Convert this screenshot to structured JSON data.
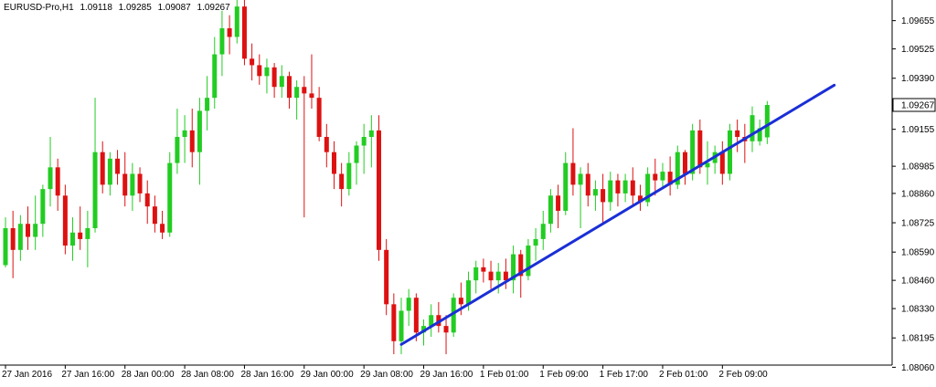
{
  "header": {
    "symbol": "EURUSD-Pro,H1",
    "open": "1.09118",
    "high": "1.09285",
    "low": "1.09087",
    "close": "1.09267"
  },
  "colors": {
    "bull": "#22cc22",
    "bear": "#dd1111",
    "wick": "#555555",
    "trendline": "#1a2fd6",
    "frame": "#000000",
    "price_box": "#000000"
  },
  "chart_data": {
    "type": "candlestick",
    "ylim": [
      1.0807,
      1.0975
    ],
    "y_ticks": [
      "1.09655",
      "1.09525",
      "1.09390",
      "1.09155",
      "1.08985",
      "1.08860",
      "1.08725",
      "1.08590",
      "1.08460",
      "1.08330",
      "1.08195",
      "1.08060"
    ],
    "current_price": "1.09267",
    "x_labels": [
      "27 Jan 2016",
      "27 Jan 16:00",
      "28 Jan 00:00",
      "28 Jan 08:00",
      "28 Jan 16:00",
      "29 Jan 00:00",
      "29 Jan 08:00",
      "29 Jan 16:00",
      "1 Feb 01:00",
      "1 Feb 09:00",
      "1 Feb 17:00",
      "2 Feb 01:00",
      "2 Feb 09:00"
    ],
    "candles": [
      {
        "o": 1.0853,
        "h": 1.0875,
        "l": 1.0852,
        "c": 1.087
      },
      {
        "o": 1.087,
        "h": 1.0878,
        "l": 1.0847,
        "c": 1.086
      },
      {
        "o": 1.086,
        "h": 1.0876,
        "l": 1.0855,
        "c": 1.0872
      },
      {
        "o": 1.0872,
        "h": 1.088,
        "l": 1.086,
        "c": 1.0866
      },
      {
        "o": 1.0866,
        "h": 1.0885,
        "l": 1.086,
        "c": 1.0872
      },
      {
        "o": 1.0872,
        "h": 1.089,
        "l": 1.0866,
        "c": 1.0888
      },
      {
        "o": 1.0888,
        "h": 1.0912,
        "l": 1.088,
        "c": 1.0898
      },
      {
        "o": 1.0898,
        "h": 1.0902,
        "l": 1.0878,
        "c": 1.0885
      },
      {
        "o": 1.0885,
        "h": 1.089,
        "l": 1.0858,
        "c": 1.0862
      },
      {
        "o": 1.0862,
        "h": 1.0875,
        "l": 1.0855,
        "c": 1.0868
      },
      {
        "o": 1.0868,
        "h": 1.088,
        "l": 1.086,
        "c": 1.0865
      },
      {
        "o": 1.0865,
        "h": 1.0878,
        "l": 1.0852,
        "c": 1.087
      },
      {
        "o": 1.087,
        "h": 1.093,
        "l": 1.0868,
        "c": 1.0905
      },
      {
        "o": 1.0905,
        "h": 1.091,
        "l": 1.0886,
        "c": 1.089
      },
      {
        "o": 1.089,
        "h": 1.0905,
        "l": 1.0885,
        "c": 1.0902
      },
      {
        "o": 1.0902,
        "h": 1.0906,
        "l": 1.089,
        "c": 1.0895
      },
      {
        "o": 1.0895,
        "h": 1.0905,
        "l": 1.088,
        "c": 1.0885
      },
      {
        "o": 1.0885,
        "h": 1.09,
        "l": 1.0878,
        "c": 1.0895
      },
      {
        "o": 1.0895,
        "h": 1.0898,
        "l": 1.0882,
        "c": 1.0886
      },
      {
        "o": 1.0886,
        "h": 1.0892,
        "l": 1.0872,
        "c": 1.088
      },
      {
        "o": 1.088,
        "h": 1.0885,
        "l": 1.0868,
        "c": 1.0872
      },
      {
        "o": 1.0872,
        "h": 1.0878,
        "l": 1.0865,
        "c": 1.0868
      },
      {
        "o": 1.0868,
        "h": 1.0905,
        "l": 1.0866,
        "c": 1.09
      },
      {
        "o": 1.09,
        "h": 1.0925,
        "l": 1.0895,
        "c": 1.0912
      },
      {
        "o": 1.0912,
        "h": 1.0922,
        "l": 1.09,
        "c": 1.0915
      },
      {
        "o": 1.0915,
        "h": 1.0925,
        "l": 1.0898,
        "c": 1.0905
      },
      {
        "o": 1.0905,
        "h": 1.093,
        "l": 1.089,
        "c": 1.0924
      },
      {
        "o": 1.0924,
        "h": 1.094,
        "l": 1.0915,
        "c": 1.093
      },
      {
        "o": 1.093,
        "h": 1.0958,
        "l": 1.0925,
        "c": 1.095
      },
      {
        "o": 1.095,
        "h": 1.097,
        "l": 1.094,
        "c": 1.0962
      },
      {
        "o": 1.0962,
        "h": 1.0968,
        "l": 1.095,
        "c": 1.0958
      },
      {
        "o": 1.0958,
        "h": 1.0978,
        "l": 1.0955,
        "c": 1.0972
      },
      {
        "o": 1.0972,
        "h": 1.0976,
        "l": 1.0945,
        "c": 1.0948
      },
      {
        "o": 1.0948,
        "h": 1.0955,
        "l": 1.0938,
        "c": 1.0945
      },
      {
        "o": 1.0945,
        "h": 1.095,
        "l": 1.0936,
        "c": 1.094
      },
      {
        "o": 1.094,
        "h": 1.0948,
        "l": 1.0932,
        "c": 1.0944
      },
      {
        "o": 1.0944,
        "h": 1.0946,
        "l": 1.093,
        "c": 1.0935
      },
      {
        "o": 1.0935,
        "h": 1.0945,
        "l": 1.093,
        "c": 1.094
      },
      {
        "o": 1.094,
        "h": 1.0942,
        "l": 1.0925,
        "c": 1.093
      },
      {
        "o": 1.093,
        "h": 1.0938,
        "l": 1.092,
        "c": 1.0935
      },
      {
        "o": 1.0935,
        "h": 1.094,
        "l": 1.0875,
        "c": 1.0932
      },
      {
        "o": 1.0932,
        "h": 1.095,
        "l": 1.0925,
        "c": 1.093
      },
      {
        "o": 1.093,
        "h": 1.0935,
        "l": 1.091,
        "c": 1.0912
      },
      {
        "o": 1.0912,
        "h": 1.0918,
        "l": 1.0898,
        "c": 1.0905
      },
      {
        "o": 1.0905,
        "h": 1.091,
        "l": 1.0888,
        "c": 1.0895
      },
      {
        "o": 1.0895,
        "h": 1.09,
        "l": 1.088,
        "c": 1.0888
      },
      {
        "o": 1.0888,
        "h": 1.0905,
        "l": 1.0885,
        "c": 1.09
      },
      {
        "o": 1.09,
        "h": 1.091,
        "l": 1.089,
        "c": 1.0908
      },
      {
        "o": 1.0908,
        "h": 1.0918,
        "l": 1.0895,
        "c": 1.0912
      },
      {
        "o": 1.0912,
        "h": 1.0922,
        "l": 1.0898,
        "c": 1.0915
      },
      {
        "o": 1.0915,
        "h": 1.0922,
        "l": 1.0855,
        "c": 1.086
      },
      {
        "o": 1.086,
        "h": 1.0865,
        "l": 1.083,
        "c": 1.0835
      },
      {
        "o": 1.0835,
        "h": 1.084,
        "l": 1.0812,
        "c": 1.0818
      },
      {
        "o": 1.0818,
        "h": 1.0838,
        "l": 1.0812,
        "c": 1.0832
      },
      {
        "o": 1.0832,
        "h": 1.0842,
        "l": 1.0825,
        "c": 1.0838
      },
      {
        "o": 1.0838,
        "h": 1.084,
        "l": 1.0818,
        "c": 1.0822
      },
      {
        "o": 1.0822,
        "h": 1.0828,
        "l": 1.0816,
        "c": 1.0825
      },
      {
        "o": 1.0825,
        "h": 1.0835,
        "l": 1.082,
        "c": 1.083
      },
      {
        "o": 1.083,
        "h": 1.0836,
        "l": 1.0822,
        "c": 1.0825
      },
      {
        "o": 1.0825,
        "h": 1.083,
        "l": 1.0812,
        "c": 1.0822
      },
      {
        "o": 1.0822,
        "h": 1.084,
        "l": 1.082,
        "c": 1.0838
      },
      {
        "o": 1.0838,
        "h": 1.0845,
        "l": 1.083,
        "c": 1.0835
      },
      {
        "o": 1.0835,
        "h": 1.085,
        "l": 1.0832,
        "c": 1.0846
      },
      {
        "o": 1.0846,
        "h": 1.0855,
        "l": 1.084,
        "c": 1.0852
      },
      {
        "o": 1.0852,
        "h": 1.0856,
        "l": 1.0845,
        "c": 1.085
      },
      {
        "o": 1.085,
        "h": 1.0855,
        "l": 1.0842,
        "c": 1.0846
      },
      {
        "o": 1.0846,
        "h": 1.0854,
        "l": 1.084,
        "c": 1.085
      },
      {
        "o": 1.085,
        "h": 1.0856,
        "l": 1.0842,
        "c": 1.0846
      },
      {
        "o": 1.0846,
        "h": 1.0862,
        "l": 1.084,
        "c": 1.0858
      },
      {
        "o": 1.0858,
        "h": 1.086,
        "l": 1.0838,
        "c": 1.0848
      },
      {
        "o": 1.0848,
        "h": 1.0865,
        "l": 1.0846,
        "c": 1.0862
      },
      {
        "o": 1.0862,
        "h": 1.087,
        "l": 1.0855,
        "c": 1.0865
      },
      {
        "o": 1.0865,
        "h": 1.0878,
        "l": 1.086,
        "c": 1.0872
      },
      {
        "o": 1.0872,
        "h": 1.0888,
        "l": 1.0868,
        "c": 1.0885
      },
      {
        "o": 1.0885,
        "h": 1.089,
        "l": 1.087,
        "c": 1.0878
      },
      {
        "o": 1.0878,
        "h": 1.0905,
        "l": 1.0876,
        "c": 1.09
      },
      {
        "o": 1.09,
        "h": 1.0916,
        "l": 1.0885,
        "c": 1.089
      },
      {
        "o": 1.089,
        "h": 1.0898,
        "l": 1.087,
        "c": 1.0895
      },
      {
        "o": 1.0895,
        "h": 1.09,
        "l": 1.088,
        "c": 1.0885
      },
      {
        "o": 1.0885,
        "h": 1.0892,
        "l": 1.0878,
        "c": 1.0888
      },
      {
        "o": 1.0888,
        "h": 1.0895,
        "l": 1.0872,
        "c": 1.0882
      },
      {
        "o": 1.0882,
        "h": 1.0896,
        "l": 1.0878,
        "c": 1.0892
      },
      {
        "o": 1.0892,
        "h": 1.0895,
        "l": 1.088,
        "c": 1.0886
      },
      {
        "o": 1.0886,
        "h": 1.0895,
        "l": 1.0882,
        "c": 1.0892
      },
      {
        "o": 1.0892,
        "h": 1.0898,
        "l": 1.088,
        "c": 1.0885
      },
      {
        "o": 1.0885,
        "h": 1.089,
        "l": 1.0878,
        "c": 1.0882
      },
      {
        "o": 1.0882,
        "h": 1.0898,
        "l": 1.088,
        "c": 1.0895
      },
      {
        "o": 1.0895,
        "h": 1.0902,
        "l": 1.0885,
        "c": 1.0892
      },
      {
        "o": 1.0892,
        "h": 1.09,
        "l": 1.0888,
        "c": 1.0896
      },
      {
        "o": 1.0896,
        "h": 1.0903,
        "l": 1.0885,
        "c": 1.089
      },
      {
        "o": 1.089,
        "h": 1.0908,
        "l": 1.0888,
        "c": 1.0905
      },
      {
        "o": 1.0905,
        "h": 1.0906,
        "l": 1.089,
        "c": 1.0895
      },
      {
        "o": 1.0895,
        "h": 1.0918,
        "l": 1.0892,
        "c": 1.0915
      },
      {
        "o": 1.0915,
        "h": 1.092,
        "l": 1.0895,
        "c": 1.0898
      },
      {
        "o": 1.0898,
        "h": 1.091,
        "l": 1.089,
        "c": 1.09
      },
      {
        "o": 1.09,
        "h": 1.0908,
        "l": 1.0895,
        "c": 1.0905
      },
      {
        "o": 1.0905,
        "h": 1.091,
        "l": 1.089,
        "c": 1.0895
      },
      {
        "o": 1.0895,
        "h": 1.0918,
        "l": 1.0892,
        "c": 1.0915
      },
      {
        "o": 1.0915,
        "h": 1.092,
        "l": 1.0905,
        "c": 1.0912
      },
      {
        "o": 1.0912,
        "h": 1.0918,
        "l": 1.09,
        "c": 1.091
      },
      {
        "o": 1.091,
        "h": 1.0926,
        "l": 1.0905,
        "c": 1.0922
      },
      {
        "o": 1.091,
        "h": 1.092,
        "l": 1.0908,
        "c": 1.0916
      },
      {
        "o": 1.09118,
        "h": 1.09285,
        "l": 1.09087,
        "c": 1.09267
      }
    ],
    "trendline": [
      {
        "i": 53,
        "price": 1.08165
      },
      {
        "i": 105,
        "price": 1.09235
      }
    ]
  }
}
